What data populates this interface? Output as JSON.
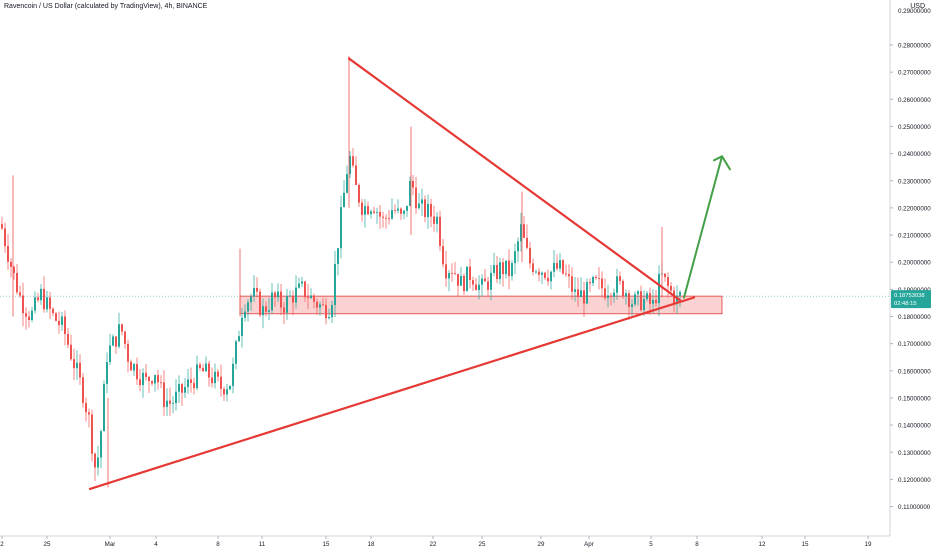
{
  "chart_data": {
    "type": "candlestick",
    "title": "Ravencoin / US Dollar (calculated by TradingView), 4h, BINANCE",
    "currency": "USD",
    "x_tick_labels": [
      "2",
      "25",
      "Mar",
      "4",
      "8",
      "11",
      "15",
      "18",
      "22",
      "25",
      "29",
      "Apr",
      "5",
      "8",
      "12",
      "15",
      "19"
    ],
    "y_tick_labels": [
      "0.28000000",
      "0.27000000",
      "0.26000000",
      "0.25000000",
      "0.24000000",
      "0.23000000",
      "0.22000000",
      "0.21000000",
      "0.20000000",
      "0.19000000",
      "0.18000000",
      "0.17000000",
      "0.16000000",
      "0.15000000",
      "0.14000000",
      "0.13000000",
      "0.12000000",
      "0.11000000"
    ],
    "ylim": [
      0.107,
      0.29
    ],
    "current_price": {
      "value": 0.1875,
      "label": "0.18753038",
      "countdown": "02:48:15"
    },
    "colors": {
      "up": "#26a69a",
      "down": "#ef5350",
      "trendline": "#e53935",
      "arrow": "#43a047",
      "zone_fill": "#f8bfbf",
      "zone_border": "#e53935",
      "price_tag": "#26a69a"
    },
    "ohlc_close_path": [
      [
        0,
        0.214
      ],
      [
        12,
        0.196
      ],
      [
        20,
        0.186
      ],
      [
        30,
        0.18
      ],
      [
        40,
        0.188
      ],
      [
        52,
        0.18
      ],
      [
        62,
        0.176
      ],
      [
        72,
        0.164
      ],
      [
        82,
        0.152
      ],
      [
        88,
        0.142
      ],
      [
        95,
        0.122
      ],
      [
        100,
        0.138
      ],
      [
        106,
        0.166
      ],
      [
        112,
        0.17
      ],
      [
        120,
        0.176
      ],
      [
        128,
        0.164
      ],
      [
        136,
        0.16
      ],
      [
        145,
        0.156
      ],
      [
        154,
        0.16
      ],
      [
        162,
        0.15
      ],
      [
        170,
        0.148
      ],
      [
        180,
        0.152
      ],
      [
        190,
        0.156
      ],
      [
        200,
        0.16
      ],
      [
        210,
        0.158
      ],
      [
        220,
        0.154
      ],
      [
        230,
        0.156
      ],
      [
        236,
        0.17
      ],
      [
        242,
        0.185
      ],
      [
        252,
        0.188
      ],
      [
        262,
        0.182
      ],
      [
        272,
        0.187
      ],
      [
        282,
        0.184
      ],
      [
        292,
        0.188
      ],
      [
        302,
        0.19
      ],
      [
        312,
        0.186
      ],
      [
        322,
        0.183
      ],
      [
        330,
        0.184
      ],
      [
        336,
        0.205
      ],
      [
        342,
        0.222
      ],
      [
        348,
        0.24
      ],
      [
        354,
        0.228
      ],
      [
        362,
        0.22
      ],
      [
        372,
        0.222
      ],
      [
        382,
        0.215
      ],
      [
        392,
        0.22
      ],
      [
        402,
        0.215
      ],
      [
        410,
        0.23
      ],
      [
        418,
        0.22
      ],
      [
        428,
        0.218
      ],
      [
        436,
        0.216
      ],
      [
        444,
        0.198
      ],
      [
        452,
        0.198
      ],
      [
        460,
        0.192
      ],
      [
        470,
        0.196
      ],
      [
        480,
        0.19
      ],
      [
        490,
        0.194
      ],
      [
        500,
        0.198
      ],
      [
        510,
        0.196
      ],
      [
        520,
        0.212
      ],
      [
        528,
        0.2
      ],
      [
        538,
        0.198
      ],
      [
        548,
        0.196
      ],
      [
        558,
        0.198
      ],
      [
        566,
        0.194
      ],
      [
        574,
        0.188
      ],
      [
        584,
        0.188
      ],
      [
        594,
        0.192
      ],
      [
        604,
        0.19
      ],
      [
        614,
        0.192
      ],
      [
        624,
        0.19
      ],
      [
        632,
        0.185
      ],
      [
        642,
        0.186
      ],
      [
        652,
        0.184
      ],
      [
        660,
        0.195
      ],
      [
        668,
        0.19
      ],
      [
        676,
        0.186
      ],
      [
        680,
        0.188
      ]
    ],
    "annotations": {
      "descending_trendline": {
        "from": [
          "Mar 16",
          0.275
        ],
        "to": [
          "Apr 6",
          0.186
        ]
      },
      "ascending_trendline": {
        "from": [
          "Feb 28",
          0.1165
        ],
        "to": [
          "Apr 6",
          0.187
        ]
      },
      "support_zone": {
        "from": "Mar 9",
        "to": "Apr 8",
        "low": 0.181,
        "high": 0.1875
      },
      "projection_arrow": {
        "from": [
          "Apr 6",
          0.187
        ],
        "to": [
          "Apr 8",
          0.239
        ]
      }
    }
  }
}
